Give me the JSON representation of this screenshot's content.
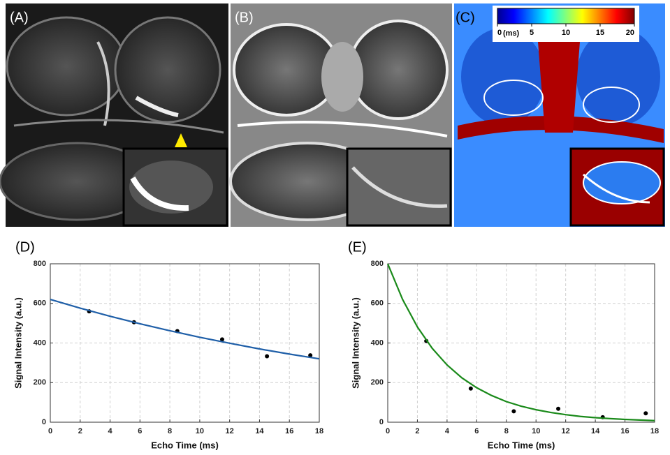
{
  "panels": {
    "a": "(A)",
    "b": "(B)",
    "c": "(C)"
  },
  "colorbar": {
    "range": [
      0,
      20
    ],
    "ticks": [
      0,
      5,
      10,
      15,
      20
    ],
    "unit": "(ms)"
  },
  "chart_data": [
    {
      "type": "line",
      "panel_label": "(D)",
      "xlabel": "Echo Time (ms)",
      "ylabel": "Signal Intensity (a.u.)",
      "xlim": [
        0,
        18
      ],
      "xticks": [
        0,
        2,
        4,
        6,
        8,
        10,
        12,
        14,
        16,
        18
      ],
      "ylim": [
        0,
        800
      ],
      "yticks": [
        0,
        200,
        400,
        600,
        800
      ],
      "grid": true,
      "series": [
        {
          "style": "markers",
          "color": "#000000",
          "x": [
            2.6,
            5.6,
            8.5,
            11.5,
            14.5,
            17.4
          ],
          "values": [
            560,
            505,
            460,
            418,
            333,
            338
          ]
        },
        {
          "style": "line",
          "color": "#1f5fa8",
          "x": [
            0,
            2,
            4,
            6,
            8,
            10,
            12,
            14,
            16,
            18
          ],
          "values": [
            620,
            576,
            535,
            497,
            462,
            429,
            399,
            370,
            344,
            320
          ]
        }
      ]
    },
    {
      "type": "line",
      "panel_label": "(E)",
      "xlabel": "Echo Time (ms)",
      "ylabel": "Signal Intensity (a.u.)",
      "xlim": [
        0,
        18
      ],
      "xticks": [
        0,
        2,
        4,
        6,
        8,
        10,
        12,
        14,
        16,
        18
      ],
      "ylim": [
        0,
        800
      ],
      "yticks": [
        0,
        200,
        400,
        600,
        800
      ],
      "grid": true,
      "series": [
        {
          "style": "markers",
          "color": "#000000",
          "x": [
            2.6,
            5.6,
            8.5,
            11.5,
            14.5,
            17.4
          ],
          "values": [
            410,
            170,
            55,
            68,
            25,
            45
          ]
        },
        {
          "style": "line",
          "color": "#1a8a1a",
          "x": [
            0,
            1,
            2,
            3,
            4,
            5,
            6,
            7,
            8,
            9,
            10,
            11,
            12,
            13,
            14,
            15,
            16,
            17,
            18
          ],
          "values": [
            800,
            620,
            481,
            373,
            289,
            224,
            174,
            135,
            104,
            81,
            63,
            49,
            38,
            29,
            23,
            18,
            14,
            11,
            8
          ]
        }
      ]
    }
  ]
}
